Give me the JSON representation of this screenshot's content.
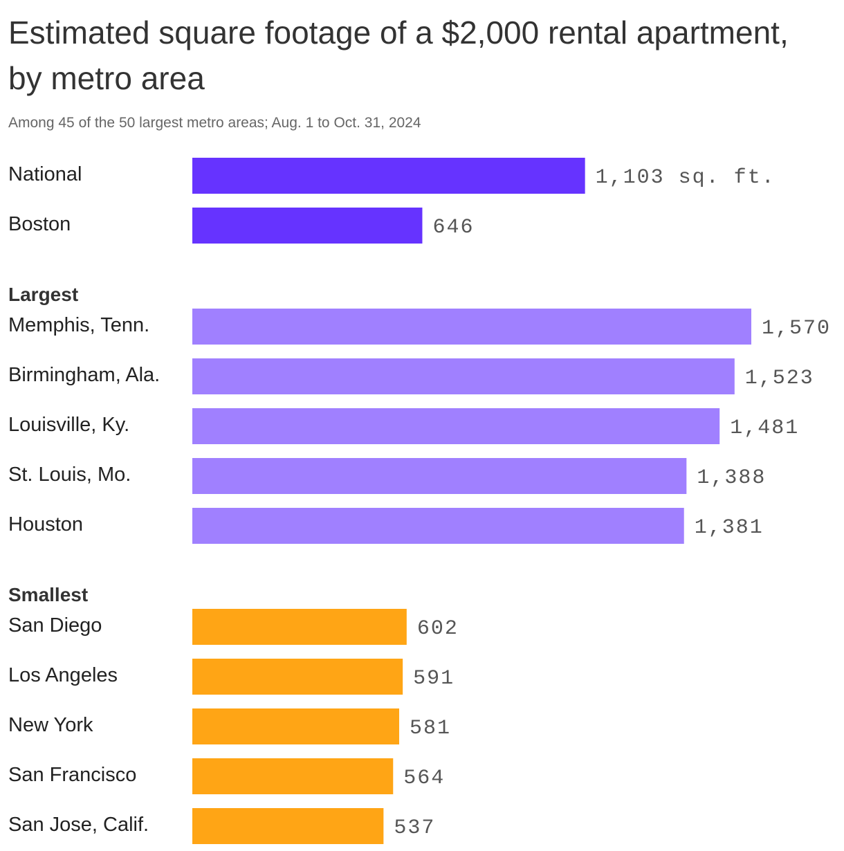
{
  "chart_data": {
    "type": "bar",
    "title": "Estimated square footage of a $2,000 rental apartment, by metro area",
    "subtitle": "Among 45 of the 50 largest metro areas; Aug. 1 to Oct. 31, 2024",
    "unit_suffix": " sq. ft.",
    "groups": [
      {
        "label": "",
        "color": "#6633ff",
        "items": [
          {
            "label": "National",
            "value": 1103,
            "value_label": "1,103 sq. ft."
          },
          {
            "label": "Boston",
            "value": 646,
            "value_label": "646"
          }
        ]
      },
      {
        "label": "Largest",
        "color": "#a080ff",
        "items": [
          {
            "label": "Memphis, Tenn.",
            "value": 1570,
            "value_label": "1,570"
          },
          {
            "label": "Birmingham, Ala.",
            "value": 1523,
            "value_label": "1,523"
          },
          {
            "label": "Louisville, Ky.",
            "value": 1481,
            "value_label": "1,481"
          },
          {
            "label": "St. Louis, Mo.",
            "value": 1388,
            "value_label": "1,388"
          },
          {
            "label": "Houston",
            "value": 1381,
            "value_label": "1,381"
          }
        ]
      },
      {
        "label": "Smallest",
        "color": "#ffa515",
        "items": [
          {
            "label": "San Diego",
            "value": 602,
            "value_label": "602"
          },
          {
            "label": "Los Angeles",
            "value": 591,
            "value_label": "591"
          },
          {
            "label": "New York",
            "value": 581,
            "value_label": "581"
          },
          {
            "label": "San Francisco",
            "value": 564,
            "value_label": "564"
          },
          {
            "label": "San Jose, Calif.",
            "value": 537,
            "value_label": "537"
          }
        ]
      }
    ],
    "grid": false
  }
}
